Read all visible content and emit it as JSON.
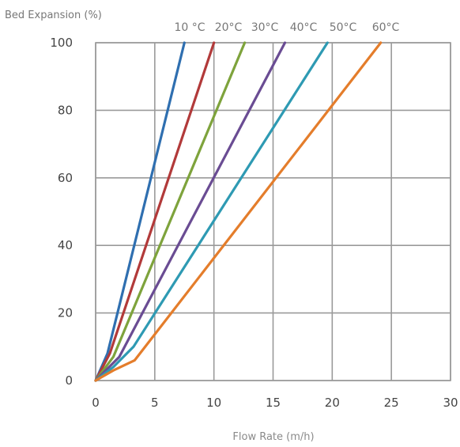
{
  "chart_data": {
    "type": "line",
    "title": "",
    "xlabel": "Flow Rate (m/h)",
    "ylabel": "Bed Expansion  (%)",
    "xlim": [
      0,
      30
    ],
    "ylim": [
      0,
      100
    ],
    "x_ticks": [
      "0",
      "5",
      "10",
      "15",
      "20",
      "25",
      "30"
    ],
    "y_ticks": [
      "0",
      "20",
      "40",
      "60",
      "80",
      "100"
    ],
    "grid": true,
    "legend": "series labels printed above the plot at the top end of each line",
    "series": [
      {
        "name": "10 °C",
        "color": "#2f6fb0",
        "x": [
          0,
          1,
          7.5
        ],
        "y": [
          0,
          8,
          100
        ]
      },
      {
        "name": "20°C",
        "color": "#b23a3a",
        "x": [
          0,
          1.2,
          10
        ],
        "y": [
          0,
          8,
          100
        ]
      },
      {
        "name": "30°C",
        "color": "#7ea33c",
        "x": [
          0,
          1.5,
          12.6
        ],
        "y": [
          0,
          7,
          100
        ]
      },
      {
        "name": "40°C",
        "color": "#6a4c93",
        "x": [
          0,
          2,
          16
        ],
        "y": [
          0,
          7,
          100
        ]
      },
      {
        "name": "50°C",
        "color": "#2e9ab3",
        "x": [
          0,
          1.5,
          3.2,
          19.6
        ],
        "y": [
          0,
          4,
          10,
          100
        ]
      },
      {
        "name": "60°C",
        "color": "#e47d2b",
        "x": [
          0,
          1.5,
          3.3,
          24.1
        ],
        "y": [
          0,
          3,
          6,
          100
        ]
      }
    ]
  }
}
